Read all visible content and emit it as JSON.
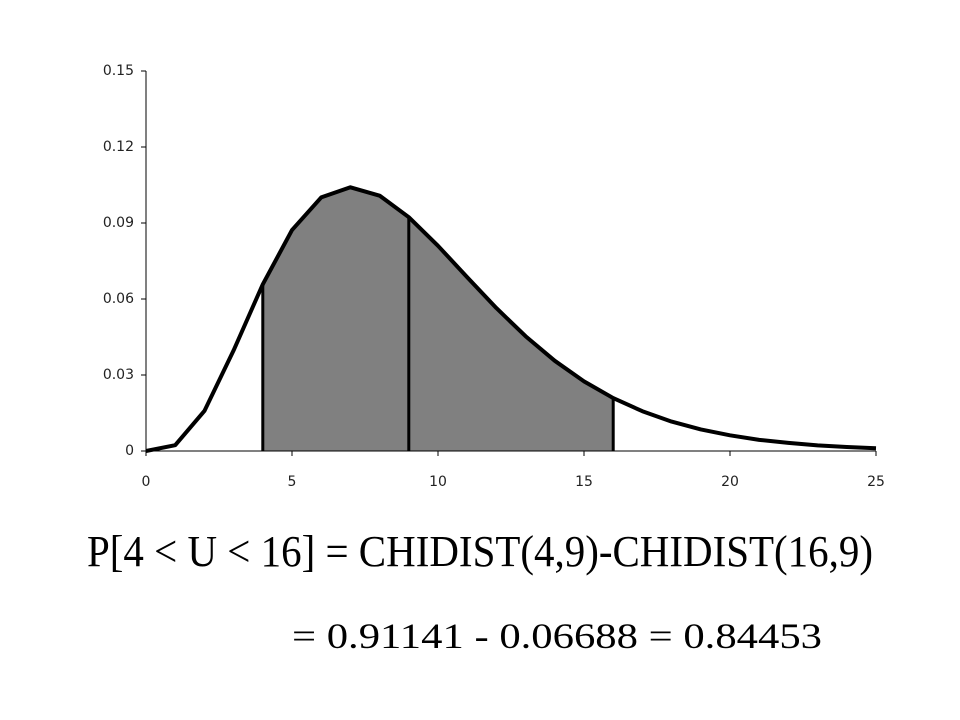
{
  "chart_data": {
    "type": "line",
    "x": [
      0,
      1,
      2,
      3,
      4,
      5,
      6,
      7,
      8,
      9,
      10,
      11,
      12,
      13,
      14,
      15,
      16,
      17,
      18,
      19,
      20,
      21,
      22,
      23,
      24,
      25
    ],
    "series": [
      {
        "color": "#000000",
        "values": [
          0,
          0.0023,
          0.0158,
          0.0397,
          0.0658,
          0.0872,
          0.1001,
          0.1041,
          0.1008,
          0.0923,
          0.081,
          0.0686,
          0.0564,
          0.0453,
          0.0356,
          0.0275,
          0.0209,
          0.0157,
          0.0116,
          0.0085,
          0.0062,
          0.0044,
          0.0032,
          0.0022,
          0.0016,
          0.0011
        ]
      }
    ],
    "shade": [
      4,
      16
    ],
    "shade_color": "#808080",
    "markers": [
      4,
      9,
      16
    ],
    "xlim": [
      0,
      25
    ],
    "xticks": [
      0,
      5,
      10,
      15,
      20,
      25
    ],
    "ylim": [
      0,
      0.15
    ],
    "yticks": [
      {
        "value": 0,
        "label": "0"
      },
      0.03,
      0.06,
      0.09,
      0.12,
      0.15
    ],
    "formula": "P[4 < U < 16] = CHIDIST(4,9)-CHIDIST(16,9)",
    "result": "= 0.91141 - 0.06688 = 0.84453"
  }
}
